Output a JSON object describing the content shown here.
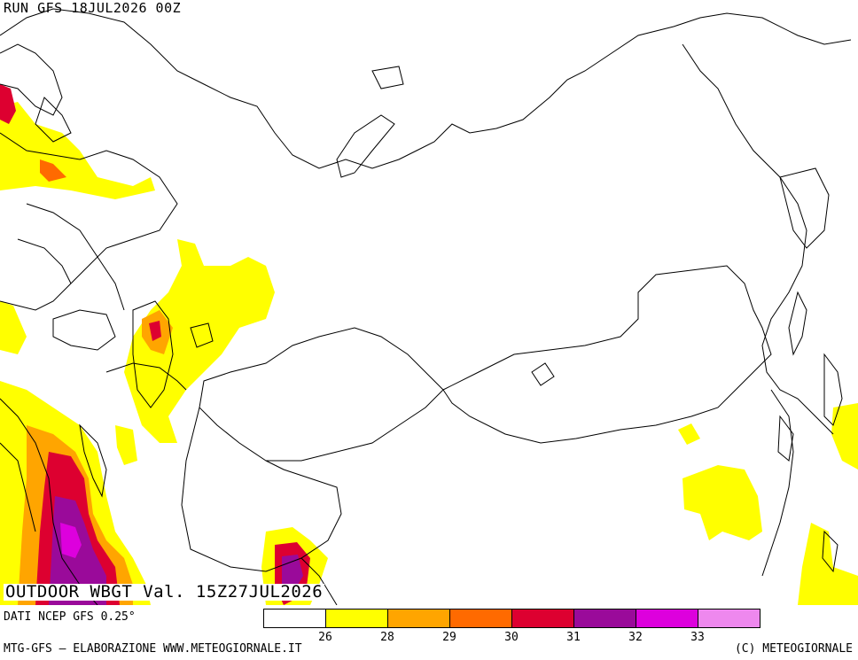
{
  "header": {
    "run_label": "RUN GFS 18JUL2026 00Z"
  },
  "product": {
    "label": "OUTDOOR WBGT Val. 15Z27JUL2026"
  },
  "footer": {
    "data_source": "DATI NCEP GFS 0.25°",
    "credit_left": "MTG-GFS — ELABORAZIONE WWW.METEOGIORNALE.IT",
    "credit_right": "(C) METEOGIORNALE"
  },
  "legend": {
    "colors": [
      "#ffffff",
      "#ffff00",
      "#ffa500",
      "#ff6a00",
      "#dd0030",
      "#9a0a9a",
      "#dd00dd",
      "#ee88ee"
    ],
    "labels": [
      "26",
      "28",
      "29",
      "30",
      "31",
      "32",
      "33"
    ]
  }
}
